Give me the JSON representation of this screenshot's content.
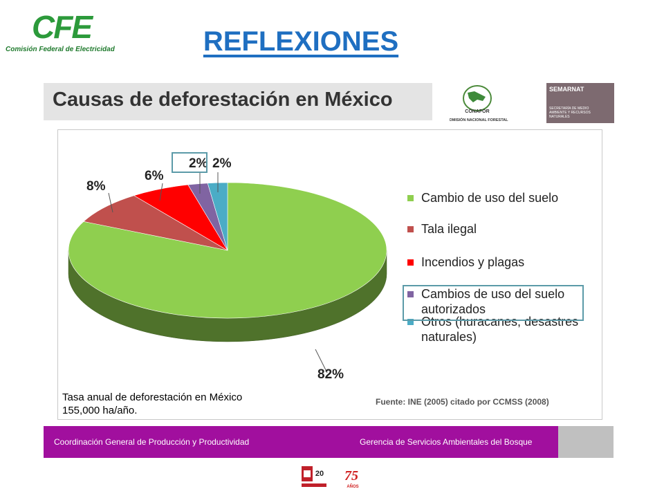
{
  "header": {
    "logo_text": "CFE",
    "logo_subtext": "Comisión Federal de Electricidad",
    "title": "REFLEXIONES"
  },
  "subtitle": "Causas de deforestación en México",
  "partner_logos": {
    "conafor_text": "CONAFOR",
    "conafor_subtext": "COMISIÓN NACIONAL FORESTAL",
    "semarnat_title": "SEMARNAT",
    "semarnat_subtext": "SECRETARÍA DE MEDIO AMBIENTE Y RECURSOS NATURALES"
  },
  "chart_data": {
    "type": "pie",
    "categories": [
      "Cambio de uso del suelo",
      "Tala ilegal",
      "Incendios y plagas",
      "Cambios de uso del suelo autorizados",
      "Otros (huracanes, desastres naturales)"
    ],
    "values": [
      82,
      8,
      6,
      2,
      2
    ],
    "labels": [
      "82%",
      "8%",
      "6%",
      "2%",
      "2%"
    ],
    "colors": [
      "#8fcf4f",
      "#c0504d",
      "#ff0000",
      "#8064a2",
      "#4bacc6"
    ],
    "legend_position": "right",
    "highlighted_entry": "Cambios de uso del suelo autorizados"
  },
  "note": "Tasa anual de deforestación en México 155,000 ha/año.",
  "source": "Fuente: INE (2005) citado por CCMSS (2008)",
  "footer": {
    "left": "Coordinación General de Producción y Productividad",
    "right": "Gerencia de Servicios Ambientales del Bosque"
  },
  "bottom_logos": {
    "logo1_text": "20",
    "logo2_text": "75",
    "logo2_subtext": "AÑOS"
  }
}
